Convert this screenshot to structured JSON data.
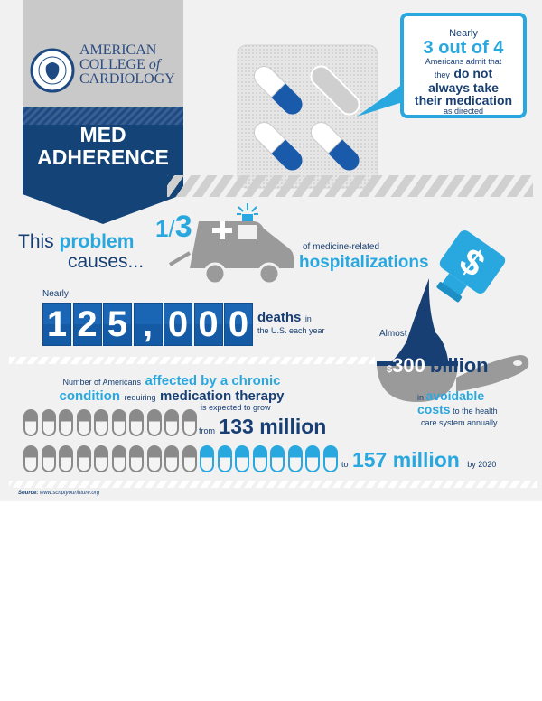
{
  "logo": {
    "line1": "AMERICAN",
    "line2a": "COLLEGE",
    "line2b": "of",
    "line3": "CARDIOLOGY",
    "seal_text": "AMERICAN COLLEGE OF CARDIOLOGY"
  },
  "banner": {
    "line1": "MED",
    "line2": "ADHERENCE"
  },
  "bubble": {
    "pre": "Nearly",
    "stat": "3 out of 4",
    "l1": "Americans admit that",
    "l2a": "they",
    "l2b": "do not",
    "l3": "always take",
    "l4": "their medication",
    "l5": "as directed"
  },
  "problem": {
    "this": "This",
    "problem": "problem",
    "causes": "causes..."
  },
  "hosp": {
    "frac_num": "1",
    "frac_den": "3",
    "pre": "of medicine-related",
    "main": "hospitalizations"
  },
  "bottle": {
    "symbol": "$"
  },
  "deaths": {
    "pre": "Nearly",
    "digits": [
      "1",
      "2",
      "5",
      ",",
      "0",
      "0",
      "0"
    ],
    "main": "deaths",
    "in": "in",
    "post": "the U.S. each year"
  },
  "cost": {
    "pre": "Almost",
    "currency": "$",
    "amount": "300",
    "unit": "billion",
    "in": "in",
    "avoidable": "avoidable",
    "costs": "costs",
    "post1": "to the health",
    "post2": "care system annually"
  },
  "chronic": {
    "l1a": "Number of Americans",
    "l1b": "affected by a chronic",
    "l2a": "condition",
    "l2b": "requiring",
    "l2c": "medication therapy",
    "grow": "is expected to grow",
    "from": "from",
    "from_val": "133 million",
    "to": "to",
    "to_val": "157 million",
    "by": "by 2020",
    "row1_grey": 10,
    "row2_grey": 10,
    "row2_blue": 8
  },
  "source": {
    "label": "Source:",
    "url": "www.scriptyourfuture.org"
  },
  "colors": {
    "navy": "#173f73",
    "blue": "#29a8e0",
    "grey": "#8a8a8a",
    "background": "#f1f1f1"
  }
}
